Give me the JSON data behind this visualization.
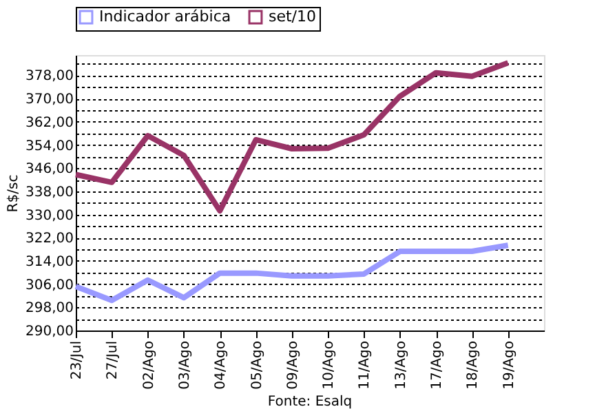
{
  "chart_data": {
    "type": "line",
    "ylabel": "R$/sc",
    "annotations": [
      "Fonte: Esalq"
    ],
    "categories": [
      "23/Jul",
      "27/Jul",
      "02/Ago",
      "03/Ago",
      "04/Ago",
      "05/Ago",
      "09/Ago",
      "10/Ago",
      "11/Ago",
      "13/Ago",
      "17/Ago",
      "18/Ago",
      "19/Ago"
    ],
    "series": [
      {
        "name": "Indicador arábica",
        "color": "#9999ff",
        "values": [
          305.2,
          300.4,
          307.4,
          301.3,
          309.8,
          309.8,
          308.8,
          308.8,
          309.5,
          317.3,
          317.3,
          317.3,
          319.4
        ]
      },
      {
        "name": "set/10",
        "color": "#993366",
        "values": [
          343.8,
          341.1,
          357.2,
          350.4,
          331.3,
          355.8,
          352.7,
          352.9,
          357.5,
          370.8,
          378.9,
          377.7,
          382.3
        ]
      }
    ],
    "ylim": [
      290,
      385
    ],
    "yticks": [
      {
        "value": 290,
        "label": "290,00"
      },
      {
        "value": 294,
        "label": null
      },
      {
        "value": 298,
        "label": "298,00"
      },
      {
        "value": 302,
        "label": null
      },
      {
        "value": 306,
        "label": "306,00"
      },
      {
        "value": 310,
        "label": null
      },
      {
        "value": 314,
        "label": "314,00"
      },
      {
        "value": 318,
        "label": null
      },
      {
        "value": 322,
        "label": "322,00"
      },
      {
        "value": 326,
        "label": null
      },
      {
        "value": 330,
        "label": "330,00"
      },
      {
        "value": 334,
        "label": null
      },
      {
        "value": 338,
        "label": "338,00"
      },
      {
        "value": 342,
        "label": null
      },
      {
        "value": 346,
        "label": "346,00"
      },
      {
        "value": 350,
        "label": null
      },
      {
        "value": 354,
        "label": "354,00"
      },
      {
        "value": 358,
        "label": null
      },
      {
        "value": 362,
        "label": "362,00"
      },
      {
        "value": 366,
        "label": null
      },
      {
        "value": 370,
        "label": "370,00"
      },
      {
        "value": 374,
        "label": null
      },
      {
        "value": 378,
        "label": "378,00"
      },
      {
        "value": 382,
        "label": null
      }
    ],
    "grid": "y",
    "legend": "top",
    "marker": "none",
    "line_style": "solid"
  }
}
